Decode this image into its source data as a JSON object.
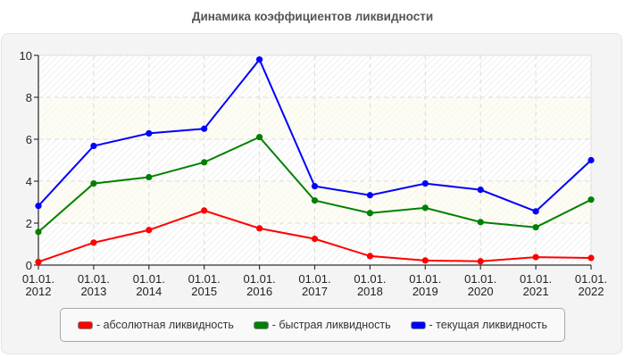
{
  "title": "Динамика коэффициентов ликвидности",
  "colors": {
    "panel_bg": "#f4f4f4",
    "gridline": "#dddddd",
    "axis": "#333333"
  },
  "chart_data": {
    "type": "line",
    "title": "Динамика коэффициентов ликвидности",
    "xlabel": "",
    "ylabel": "",
    "categories": [
      "01.01.\n2012",
      "01.01.\n2013",
      "01.01.\n2014",
      "01.01.\n2015",
      "01.01.\n2016",
      "01.01.\n2017",
      "01.01.\n2018",
      "01.01.\n2019",
      "01.01.\n2020",
      "01.01.\n2021",
      "01.01.\n2022"
    ],
    "x_labels": [
      [
        "01.01.",
        "2012"
      ],
      [
        "01.01.",
        "2013"
      ],
      [
        "01.01.",
        "2014"
      ],
      [
        "01.01.",
        "2015"
      ],
      [
        "01.01.",
        "2016"
      ],
      [
        "01.01.",
        "2017"
      ],
      [
        "01.01.",
        "2018"
      ],
      [
        "01.01.",
        "2019"
      ],
      [
        "01.01.",
        "2020"
      ],
      [
        "01.01.",
        "2021"
      ],
      [
        "01.01.",
        "2022"
      ]
    ],
    "yticks": [
      0,
      2,
      4,
      6,
      8,
      10
    ],
    "ylim": [
      0,
      10
    ],
    "grid": true,
    "legend_position": "bottom",
    "series": [
      {
        "name": "абсолютная ликвидность",
        "color": "#ff0000",
        "values": [
          0.15,
          1.07,
          1.67,
          2.6,
          1.75,
          1.25,
          0.43,
          0.22,
          0.18,
          0.38,
          0.34
        ]
      },
      {
        "name": "быстрая ликвидность",
        "color": "#008000",
        "values": [
          1.58,
          3.89,
          4.19,
          4.9,
          6.1,
          3.08,
          2.48,
          2.73,
          2.05,
          1.8,
          3.12
        ]
      },
      {
        "name": "текущая ликвидность",
        "color": "#0000ff",
        "values": [
          2.82,
          5.68,
          6.28,
          6.5,
          9.8,
          3.76,
          3.33,
          3.89,
          3.59,
          2.56,
          5.0
        ]
      }
    ]
  },
  "legend": {
    "items": [
      {
        "label": "- абсолютная ликвидность",
        "color": "#ff0000"
      },
      {
        "label": "- быстрая ликвидность",
        "color": "#008000"
      },
      {
        "label": "- текущая ликвидность",
        "color": "#0000ff"
      }
    ]
  }
}
